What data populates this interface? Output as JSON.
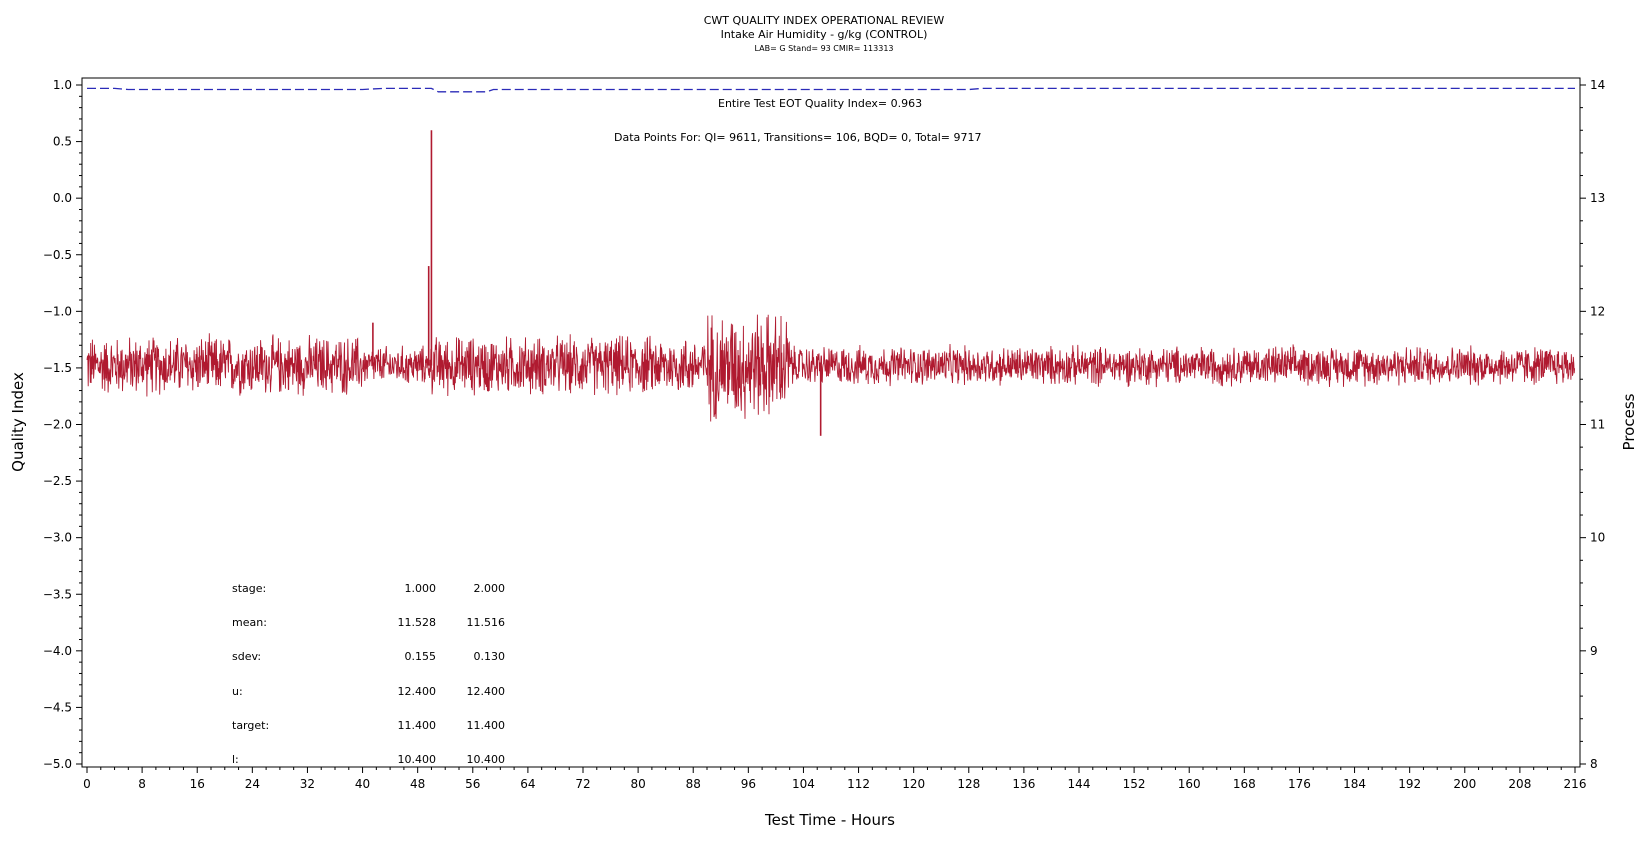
{
  "chart_data": {
    "type": "line",
    "title": "CWT QUALITY INDEX OPERATIONAL REVIEW",
    "subtitle": "Intake Air Humidity - g/kg (CONTROL)",
    "subtitle2": "LAB= G Stand= 93 CMIR= 113313",
    "xlabel": "Test Time - Hours",
    "ylabel_left": "Quality Index",
    "ylabel_right": "Process",
    "xlim": [
      0,
      216
    ],
    "ylim_left": [
      -5.0,
      1.0
    ],
    "ylim_right": [
      8,
      14
    ],
    "x_ticks": [
      "0",
      "8",
      "16",
      "24",
      "32",
      "40",
      "48",
      "56",
      "64",
      "72",
      "80",
      "88",
      "96",
      "104",
      "112",
      "120",
      "128",
      "136",
      "144",
      "152",
      "160",
      "168",
      "176",
      "184",
      "192",
      "200",
      "208",
      "216"
    ],
    "y_left_ticks": [
      "1.0",
      "0.5",
      "0.0",
      "-0.5",
      "-1.0",
      "-1.5",
      "-2.0",
      "-2.5",
      "-3.0",
      "-3.5",
      "-4.0",
      "-4.5",
      "-5.0"
    ],
    "y_right_ticks": [
      "14",
      "13",
      "12",
      "11",
      "10",
      "9",
      "8"
    ],
    "grid": false,
    "annotations": [
      "Entire Test EOT Quality Index=   0.963",
      "Data Points For: QI=  9611, Transitions=    106, BQD=     0, Total=  9717"
    ],
    "series": [
      {
        "name": "Quality Index",
        "axis": "left",
        "style": "dashed",
        "color": "#2b2bb8",
        "x": [
          0,
          4,
          6,
          8,
          26,
          40,
          43,
          50,
          51,
          58,
          59,
          128,
          130,
          216
        ],
        "y": [
          0.97,
          0.97,
          0.96,
          0.96,
          0.96,
          0.96,
          0.97,
          0.97,
          0.94,
          0.94,
          0.96,
          0.96,
          0.97,
          0.97
        ]
      },
      {
        "name": "Process",
        "axis": "right",
        "style": "solid",
        "color": "#b01a30",
        "mean": 11.52,
        "bands": [
          {
            "x": [
              0,
              40
            ],
            "low": 11.2,
            "high": 11.8
          },
          {
            "x": [
              40,
              50
            ],
            "low": 11.3,
            "high": 11.7
          },
          {
            "x": [
              50,
              90
            ],
            "low": 11.2,
            "high": 11.8
          },
          {
            "x": [
              90,
              102
            ],
            "low": 11.0,
            "high": 12.1
          },
          {
            "x": [
              102,
              216
            ],
            "low": 11.3,
            "high": 11.7
          }
        ],
        "spikes": [
          {
            "x": 41.5,
            "y": 11.9
          },
          {
            "x": 49.6,
            "y": 12.4
          },
          {
            "x": 50.0,
            "y": 13.6
          },
          {
            "x": 106.5,
            "y": 10.9
          }
        ]
      }
    ]
  },
  "stats_table": {
    "rows": [
      {
        "label": "stage:",
        "v1": "1.000",
        "v2": "2.000"
      },
      {
        "label": "mean:",
        "v1": "11.528",
        "v2": "11.516"
      },
      {
        "label": "sdev:",
        "v1": "0.155",
        "v2": "0.130"
      },
      {
        "label": "u:",
        "v1": "12.400",
        "v2": "12.400"
      },
      {
        "label": "target:",
        "v1": "11.400",
        "v2": "11.400"
      },
      {
        "label": "l:",
        "v1": "10.400",
        "v2": "10.400"
      }
    ]
  }
}
